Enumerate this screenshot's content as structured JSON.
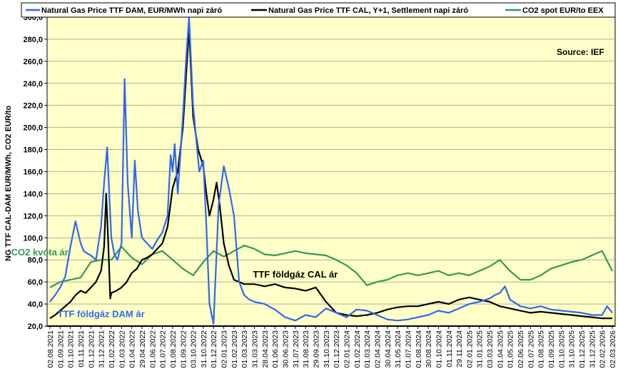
{
  "chart_data": {
    "type": "line",
    "title": "",
    "source": "Source: IEF",
    "ylabel": "NG TTF CAL-DAM EUR/MWh, CO2 EUR/to",
    "xlabel": "",
    "ylim": [
      20,
      300
    ],
    "y_ticks": [
      20,
      40,
      60,
      80,
      100,
      120,
      140,
      160,
      180,
      200,
      220,
      240,
      260,
      280,
      300
    ],
    "y_tick_labels": [
      "20,0",
      "40,0",
      "60,0",
      "80,0",
      "100,0",
      "120,0",
      "140,0",
      "160,0",
      "180,0",
      "200,0",
      "220,0",
      "240,0",
      "260,0",
      "280,0",
      "300,0"
    ],
    "x_tick_labels": [
      "02.08.2021",
      "01.09.2021",
      "01.10.2021",
      "01.11.2021",
      "01.12.2021",
      "31.12.2021",
      "01.02.2022",
      "01.03.2022",
      "01.04.2022",
      "29.04.2022",
      "01.06.2022",
      "01.07.2022",
      "01.08.2022",
      "01.09.2022",
      "03.10.2022",
      "31.10.2022",
      "01.12.2022",
      "02.01.2023",
      "01.02.2023",
      "01.03.2023",
      "31.03.2023",
      "28.04.2023",
      "01.06.2023",
      "30.06.2023",
      "31.07.2023",
      "31.08.2023",
      "29.09.2023",
      "31.10.2023",
      "01.12.2023",
      "02.01.2024",
      "01.02.2024",
      "01.03.2024",
      "02.04.2024",
      "30.04.2024",
      "31.05.2024",
      "01.07.2024",
      "01.08.2024",
      "30.08.2024",
      "01.10.2024",
      "01.11.2024",
      "29.11.2024",
      "02.01.2025",
      "31.01.2025",
      "03.03.2025",
      "01.04.2025",
      "01.05.2025",
      "02.06.2025",
      "01.07.2025",
      "01.08.2025",
      "01.09.2025",
      "01.10.2025",
      "31.10.2025",
      "01.12.2025",
      "31.12.2025",
      "02.02.2026",
      "02.03.2026"
    ],
    "legend": {
      "position": "top",
      "entries": [
        {
          "label": "Natural Gas Price TTF DAM, EUR/MWh napi záró",
          "color": "#3366ee"
        },
        {
          "label": "Natural Gas Price TTF CAL, Y+1, Settlement napi záró",
          "color": "#000000"
        },
        {
          "label": "CO2 spot EUR/to EEX",
          "color": "#339955"
        }
      ]
    },
    "annotations": [
      {
        "text": "CO2 kvóta ár",
        "series": "CO2 spot EUR/to EEX",
        "x_label": "01.09.2024",
        "y": 84,
        "color": "#339955"
      },
      {
        "text": "TTF földgáz CAL ár",
        "series": "Natural Gas Price TTF CAL, Y+1, Settlement napi záró",
        "x_label": "31.07.2023",
        "y": 64,
        "color": "#000000"
      },
      {
        "text": "TTF földgáz DAM ár",
        "series": "Natural Gas Price TTF DAM, EUR/MWh napi záró",
        "x_label": "31.12.2021",
        "y": 28,
        "color": "#3366ee"
      }
    ],
    "series": [
      {
        "name": "Natural Gas Price TTF DAM, EUR/MWh napi záró",
        "color": "#3366ee",
        "x": [
          0,
          0.5,
          1,
          1.5,
          2,
          2.5,
          3,
          3.3,
          3.6,
          4,
          4.5,
          5,
          5.3,
          5.6,
          5.8,
          6,
          6.3,
          6.6,
          7,
          7.3,
          7.6,
          8,
          8.3,
          8.6,
          9,
          9.5,
          10,
          10.5,
          11,
          11.5,
          11.8,
          12,
          12.2,
          12.5,
          13,
          13.3,
          13.6,
          14,
          14.3,
          14.6,
          15,
          15.3,
          15.6,
          16,
          16.5,
          17,
          17.5,
          18,
          18.5,
          19,
          19.5,
          20,
          21,
          22,
          23,
          24,
          25,
          26,
          27,
          28,
          29,
          30,
          31,
          32,
          33,
          34,
          35,
          36,
          37,
          38,
          39,
          40,
          41,
          42,
          43,
          43.5,
          44,
          44.5,
          45,
          46,
          47,
          48,
          49,
          50,
          51,
          52,
          53,
          54,
          54.5,
          55
        ],
        "y": [
          42,
          48,
          55,
          65,
          92,
          115,
          95,
          88,
          86,
          84,
          80,
          110,
          150,
          182,
          140,
          100,
          85,
          80,
          95,
          244,
          150,
          100,
          170,
          125,
          100,
          95,
          90,
          98,
          105,
          120,
          175,
          160,
          185,
          140,
          210,
          260,
          300,
          220,
          190,
          160,
          170,
          110,
          40,
          22,
          130,
          165,
          145,
          120,
          60,
          48,
          44,
          42,
          40,
          35,
          28,
          25,
          30,
          28,
          36,
          32,
          28,
          35,
          34,
          30,
          26,
          25,
          26,
          28,
          30,
          34,
          32,
          36,
          40,
          42,
          45,
          48,
          50,
          56,
          44,
          38,
          36,
          38,
          35,
          34,
          33,
          32,
          30,
          30,
          38,
          32
        ]
      },
      {
        "name": "Natural Gas Price TTF CAL, Y+1, Settlement napi záró",
        "color": "#000000",
        "x": [
          0,
          0.5,
          1,
          1.5,
          2,
          2.5,
          3,
          3.5,
          4,
          4.5,
          5,
          5.3,
          5.5,
          5.7,
          5.9,
          6,
          6.5,
          7,
          7.5,
          8,
          8.5,
          9,
          9.5,
          10,
          10.5,
          11,
          11.5,
          12,
          12.5,
          13,
          13.3,
          13.6,
          14,
          14.5,
          15,
          15.3,
          15.6,
          16,
          16.3,
          16.6,
          17,
          17.5,
          18,
          19,
          20,
          21,
          22,
          23,
          24,
          25,
          26,
          27,
          28,
          29,
          30,
          31,
          32,
          33,
          34,
          35,
          36,
          37,
          38,
          39,
          40,
          41,
          42,
          43,
          44,
          45,
          46,
          47,
          48,
          49,
          50,
          51,
          52,
          53,
          54,
          55
        ],
        "y": [
          27,
          30,
          34,
          38,
          42,
          48,
          52,
          50,
          55,
          60,
          70,
          92,
          140,
          95,
          45,
          50,
          52,
          55,
          60,
          68,
          72,
          80,
          82,
          85,
          90,
          95,
          110,
          145,
          160,
          200,
          245,
          290,
          210,
          180,
          165,
          140,
          120,
          135,
          150,
          130,
          95,
          75,
          62,
          58,
          58,
          56,
          58,
          55,
          54,
          52,
          55,
          42,
          32,
          30,
          29,
          30,
          32,
          35,
          37,
          38,
          38,
          40,
          42,
          40,
          44,
          46,
          44,
          42,
          38,
          36,
          34,
          32,
          33,
          32,
          31,
          30,
          29,
          28,
          27,
          27
        ]
      },
      {
        "name": "CO2 spot EUR/to EEX",
        "color": "#339955",
        "x": [
          0,
          1,
          2,
          3,
          4,
          5,
          6,
          7,
          8,
          9,
          10,
          11,
          12,
          13,
          14,
          15,
          16,
          17,
          18,
          19,
          20,
          21,
          22,
          23,
          24,
          25,
          26,
          27,
          28,
          29,
          30,
          31,
          32,
          33,
          34,
          35,
          36,
          37,
          38,
          39,
          40,
          41,
          42,
          43,
          44,
          45,
          46,
          47,
          48,
          49,
          50,
          51,
          52,
          53,
          54,
          55
        ],
        "y": [
          55,
          60,
          62,
          64,
          78,
          80,
          80,
          92,
          82,
          76,
          85,
          88,
          80,
          72,
          66,
          78,
          88,
          83,
          88,
          93,
          90,
          85,
          84,
          86,
          88,
          86,
          85,
          84,
          80,
          75,
          68,
          57,
          60,
          62,
          66,
          68,
          66,
          68,
          70,
          66,
          68,
          66,
          70,
          74,
          80,
          70,
          62,
          62,
          66,
          72,
          75,
          78,
          80,
          84,
          88,
          70
        ]
      }
    ]
  }
}
